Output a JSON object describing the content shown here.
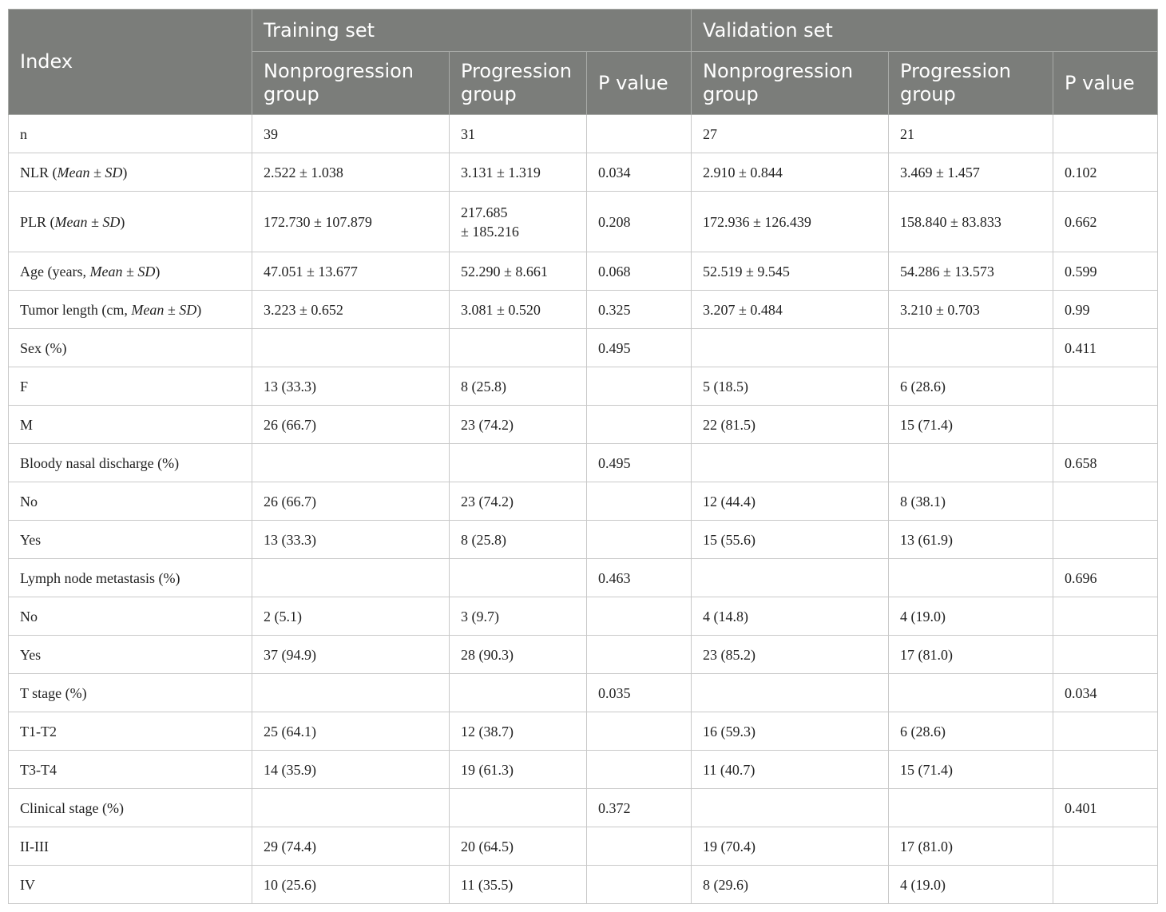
{
  "header": {
    "index_label": "Index",
    "training_label": "Training set",
    "validation_label": "Validation set",
    "training_cols": [
      "Nonprogression group",
      "Progression group",
      "P value"
    ],
    "validation_cols": [
      "Nonprogression group",
      "Progression group",
      "P value"
    ]
  },
  "rows": [
    {
      "label": "n",
      "cells": [
        "39",
        "31",
        "",
        "27",
        "21",
        ""
      ]
    },
    {
      "label_pre": "NLR (",
      "label_em": "Mean ± SD",
      "label_post": ")",
      "cells": [
        "2.522 ± 1.038",
        "3.131 ± 1.319",
        "0.034",
        "2.910 ± 0.844",
        "3.469 ± 1.457",
        "0.102"
      ]
    },
    {
      "label_pre": "PLR (",
      "label_em": "Mean ± SD",
      "label_post": ")",
      "cells": [
        "172.730 ± 107.879",
        "217.685",
        "0.208",
        "172.936 ± 126.439",
        "158.840 ± 83.833",
        "0.662"
      ],
      "cell1_line2": "± 185.216"
    },
    {
      "label_pre": "Age (years, ",
      "label_em": "Mean ± SD",
      "label_post": ")",
      "cells": [
        "47.051 ± 13.677",
        "52.290 ± 8.661",
        "0.068",
        "52.519 ± 9.545",
        "54.286 ± 13.573",
        "0.599"
      ]
    },
    {
      "label_pre": "Tumor length (cm, ",
      "label_em": "Mean ± SD",
      "label_post": ")",
      "cells": [
        "3.223 ± 0.652",
        "3.081 ± 0.520",
        "0.325",
        "3.207 ± 0.484",
        "3.210 ± 0.703",
        "0.99"
      ]
    },
    {
      "label": "Sex (%)",
      "cells": [
        "",
        "",
        "0.495",
        "",
        "",
        "0.411"
      ]
    },
    {
      "label": "F",
      "cells": [
        "13 (33.3)",
        "8 (25.8)",
        "",
        "5 (18.5)",
        "6 (28.6)",
        ""
      ]
    },
    {
      "label": "M",
      "cells": [
        "26 (66.7)",
        "23 (74.2)",
        "",
        "22 (81.5)",
        "15 (71.4)",
        ""
      ]
    },
    {
      "label": "Bloody nasal discharge (%)",
      "cells": [
        "",
        "",
        "0.495",
        "",
        "",
        "0.658"
      ]
    },
    {
      "label": "No",
      "cells": [
        "26 (66.7)",
        "23 (74.2)",
        "",
        "12 (44.4)",
        "8 (38.1)",
        ""
      ]
    },
    {
      "label": "Yes",
      "cells": [
        "13 (33.3)",
        "8 (25.8)",
        "",
        "15 (55.6)",
        "13 (61.9)",
        ""
      ]
    },
    {
      "label": "Lymph node metastasis (%)",
      "cells": [
        "",
        "",
        "0.463",
        "",
        "",
        "0.696"
      ]
    },
    {
      "label": "No",
      "cells": [
        "2 (5.1)",
        "3 (9.7)",
        "",
        "4 (14.8)",
        "4 (19.0)",
        ""
      ]
    },
    {
      "label": "Yes",
      "cells": [
        "37 (94.9)",
        "28 (90.3)",
        "",
        "23 (85.2)",
        "17 (81.0)",
        ""
      ]
    },
    {
      "label": "T stage (%)",
      "cells": [
        "",
        "",
        "0.035",
        "",
        "",
        "0.034"
      ]
    },
    {
      "label": "T1-T2",
      "cells": [
        "25 (64.1)",
        "12 (38.7)",
        "",
        "16 (59.3)",
        "6 (28.6)",
        ""
      ]
    },
    {
      "label": "T3-T4",
      "cells": [
        "14 (35.9)",
        "19 (61.3)",
        "",
        "11 (40.7)",
        "15 (71.4)",
        ""
      ]
    },
    {
      "label": "Clinical stage (%)",
      "cells": [
        "",
        "",
        "0.372",
        "",
        "",
        "0.401"
      ]
    },
    {
      "label": "II-III",
      "cells": [
        "29 (74.4)",
        "20 (64.5)",
        "",
        "19 (70.4)",
        "17 (81.0)",
        ""
      ]
    },
    {
      "label": "IV",
      "cells": [
        "10 (25.6)",
        "11 (35.5)",
        "",
        "8 (29.6)",
        "4 (19.0)",
        ""
      ]
    }
  ]
}
